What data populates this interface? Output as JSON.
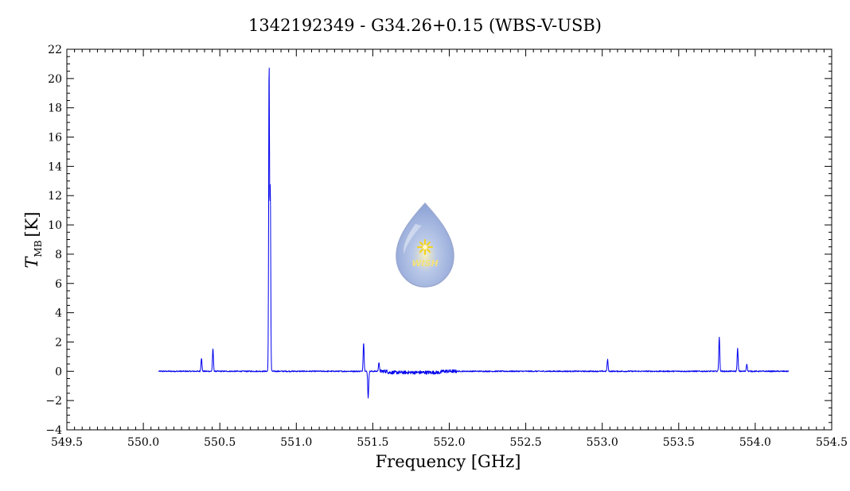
{
  "chart_data": {
    "type": "line",
    "title": "1342192349 - G34.26+0.15 (WBS-V-USB)",
    "xlabel": "Frequency [GHz]",
    "ylabel": {
      "symbol": "T",
      "subscript": "MB",
      "unit": "[K]"
    },
    "xlim": [
      549.5,
      554.5
    ],
    "ylim": [
      -4,
      22
    ],
    "xticks": [
      549.5,
      550.0,
      550.5,
      551.0,
      551.5,
      552.0,
      552.5,
      553.0,
      553.5,
      554.0,
      554.5
    ],
    "xtick_labels": [
      "549.5",
      "550.0",
      "550.5",
      "551.0",
      "551.5",
      "552.0",
      "552.5",
      "553.0",
      "553.5",
      "554.0",
      "554.5"
    ],
    "yticks": [
      -4,
      -2,
      0,
      2,
      4,
      6,
      8,
      10,
      12,
      14,
      16,
      18,
      20,
      22
    ],
    "ytick_labels": [
      "−4",
      "−2",
      "0",
      "2",
      "4",
      "6",
      "8",
      "10",
      "12",
      "14",
      "16",
      "18",
      "20",
      "22"
    ],
    "series_color": "#0000ee",
    "x_range": [
      550.1,
      554.22
    ],
    "series": [
      {
        "peaks": [
          {
            "x": 550.38,
            "y": 0.9
          },
          {
            "x": 550.455,
            "y": 1.5
          },
          {
            "x": 550.822,
            "y": 20.9
          },
          {
            "x": 550.83,
            "y": 12.3
          },
          {
            "x": 551.44,
            "y": 1.95
          },
          {
            "x": 551.47,
            "y": -1.8
          },
          {
            "x": 551.54,
            "y": 0.6
          },
          {
            "x": 553.035,
            "y": 0.8
          },
          {
            "x": 553.765,
            "y": 2.35
          },
          {
            "x": 553.885,
            "y": 1.55
          },
          {
            "x": 553.945,
            "y": 0.5
          }
        ]
      }
    ],
    "grid": false,
    "logo": {
      "text": "WISH"
    }
  }
}
